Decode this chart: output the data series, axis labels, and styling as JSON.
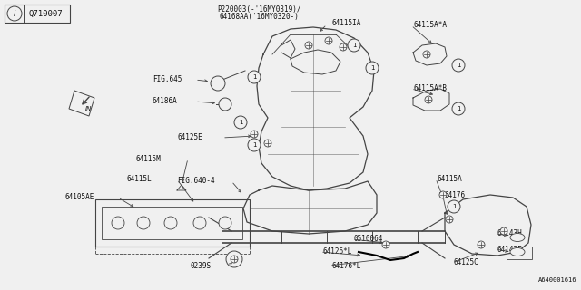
{
  "bg_color": "#f5f5f5",
  "line_color": "#555555",
  "text_color": "#222222",
  "fig_width": 6.4,
  "fig_height": 3.2,
  "dpi": 100,
  "title_line1": "P220003(-'16MY0319)/",
  "title_line2": "64168AA('16MY0320-)",
  "bottom_ref": "A640001616",
  "box_label": "Q710007"
}
